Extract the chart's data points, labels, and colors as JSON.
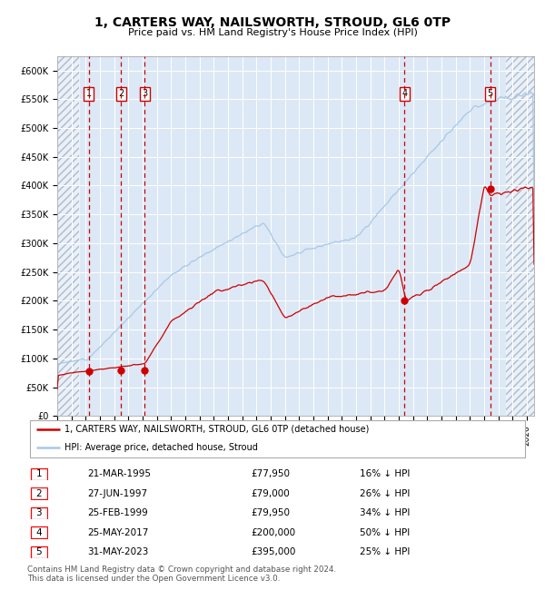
{
  "title": "1, CARTERS WAY, NAILSWORTH, STROUD, GL6 0TP",
  "subtitle": "Price paid vs. HM Land Registry's House Price Index (HPI)",
  "ylabel_values": [
    0,
    50000,
    100000,
    150000,
    200000,
    250000,
    300000,
    350000,
    400000,
    450000,
    500000,
    550000,
    600000
  ],
  "ylabel_labels": [
    "£0",
    "£50K",
    "£100K",
    "£150K",
    "£200K",
    "£250K",
    "£300K",
    "£350K",
    "£400K",
    "£450K",
    "£500K",
    "£550K",
    "£600K"
  ],
  "xlim_start": 1993.0,
  "xlim_end": 2026.5,
  "ylim_min": 0,
  "ylim_max": 625000,
  "sale_dates": [
    1995.22,
    1997.49,
    1999.15,
    2017.4,
    2023.42
  ],
  "sale_prices": [
    77950,
    79000,
    79950,
    200000,
    395000
  ],
  "sale_labels": [
    "1",
    "2",
    "3",
    "4",
    "5"
  ],
  "sale_color": "#cc0000",
  "hpi_color": "#a8c8e8",
  "background_color": "#dce8f5",
  "dashed_line_color": "#cc0000",
  "legend_label_red": "1, CARTERS WAY, NAILSWORTH, STROUD, GL6 0TP (detached house)",
  "legend_label_blue": "HPI: Average price, detached house, Stroud",
  "footer_text": "Contains HM Land Registry data © Crown copyright and database right 2024.\nThis data is licensed under the Open Government Licence v3.0.",
  "table_rows": [
    [
      "1",
      "21-MAR-1995",
      "£77,950",
      "16% ↓ HPI"
    ],
    [
      "2",
      "27-JUN-1997",
      "£79,000",
      "26% ↓ HPI"
    ],
    [
      "3",
      "25-FEB-1999",
      "£79,950",
      "34% ↓ HPI"
    ],
    [
      "4",
      "25-MAY-2017",
      "£200,000",
      "50% ↓ HPI"
    ],
    [
      "5",
      "31-MAY-2023",
      "£395,000",
      "25% ↓ HPI"
    ]
  ]
}
